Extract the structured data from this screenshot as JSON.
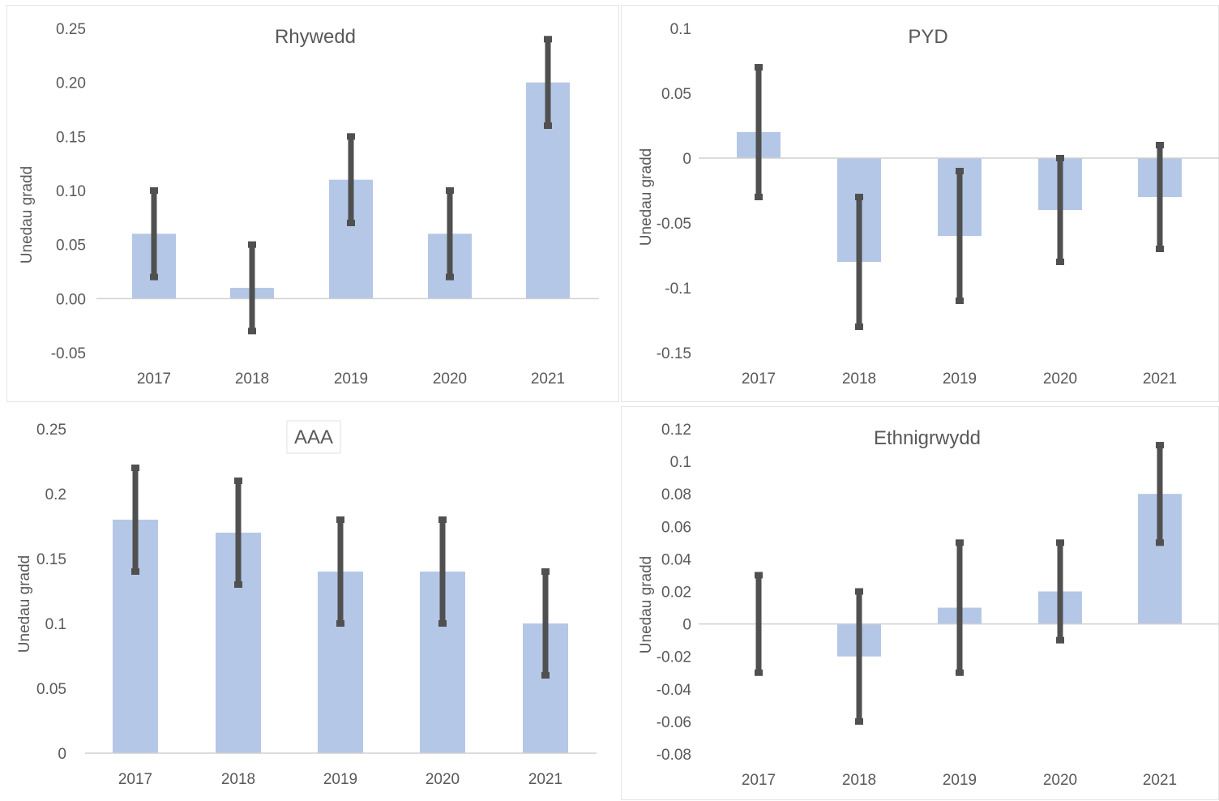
{
  "chart_data": [
    {
      "type": "bar",
      "title": "Rhywedd",
      "ylabel": "Unedau gradd",
      "xlabel": "",
      "categories": [
        "2017",
        "2018",
        "2019",
        "2020",
        "2021"
      ],
      "values": [
        0.06,
        0.01,
        0.11,
        0.06,
        0.2
      ],
      "error_low": [
        0.02,
        -0.03,
        0.07,
        0.02,
        0.16
      ],
      "error_high": [
        0.1,
        0.05,
        0.15,
        0.1,
        0.24
      ],
      "ylim": [
        -0.05,
        0.25
      ],
      "yticks": [
        "0.25",
        "0.20",
        "0.15",
        "0.10",
        "0.05",
        "0.00",
        "-0.05"
      ],
      "ytick_values": [
        0.25,
        0.2,
        0.15,
        0.1,
        0.05,
        0.0,
        -0.05
      ],
      "legend": "none",
      "grid": false
    },
    {
      "type": "bar",
      "title": "PYD",
      "ylabel": "Unedau gradd",
      "xlabel": "",
      "categories": [
        "2017",
        "2018",
        "2019",
        "2020",
        "2021"
      ],
      "values": [
        0.02,
        -0.08,
        -0.06,
        -0.04,
        -0.03
      ],
      "error_low": [
        -0.03,
        -0.13,
        -0.11,
        -0.08,
        -0.07
      ],
      "error_high": [
        0.07,
        -0.03,
        -0.01,
        0.0,
        0.01
      ],
      "ylim": [
        -0.15,
        0.1
      ],
      "yticks": [
        "0.1",
        "0.05",
        "0",
        "-0.05",
        "-0.1",
        "-0.15"
      ],
      "ytick_values": [
        0.1,
        0.05,
        0,
        -0.05,
        -0.1,
        -0.15
      ],
      "legend": "none",
      "grid": false
    },
    {
      "type": "bar",
      "title": "AAA",
      "ylabel": "Unedau gradd",
      "xlabel": "",
      "categories": [
        "2017",
        "2018",
        "2019",
        "2020",
        "2021"
      ],
      "values": [
        0.18,
        0.17,
        0.14,
        0.14,
        0.1
      ],
      "error_low": [
        0.14,
        0.13,
        0.1,
        0.1,
        0.06
      ],
      "error_high": [
        0.22,
        0.21,
        0.18,
        0.18,
        0.14
      ],
      "ylim": [
        0,
        0.25
      ],
      "yticks": [
        "0.25",
        "0.2",
        "0.15",
        "0.1",
        "0.05",
        "0"
      ],
      "ytick_values": [
        0.25,
        0.2,
        0.15,
        0.1,
        0.05,
        0
      ],
      "legend": "none",
      "grid": false
    },
    {
      "type": "bar",
      "title": "Ethnigrwydd",
      "ylabel": "Unedau gradd",
      "xlabel": "",
      "categories": [
        "2017",
        "2018",
        "2019",
        "2020",
        "2021"
      ],
      "values": [
        0.0,
        -0.02,
        0.01,
        0.02,
        0.08
      ],
      "error_low": [
        -0.03,
        -0.06,
        -0.03,
        -0.01,
        0.05
      ],
      "error_high": [
        0.03,
        0.02,
        0.05,
        0.05,
        0.11
      ],
      "ylim": [
        -0.08,
        0.12
      ],
      "yticks": [
        "0.12",
        "0.1",
        "0.08",
        "0.06",
        "0.04",
        "0.02",
        "0",
        "-0.02",
        "-0.04",
        "-0.06",
        "-0.08"
      ],
      "ytick_values": [
        0.12,
        0.1,
        0.08,
        0.06,
        0.04,
        0.02,
        0,
        -0.02,
        -0.04,
        -0.06,
        -0.08
      ],
      "legend": "none",
      "grid": false
    }
  ],
  "colors": {
    "bar": "#b4c7e7",
    "error_bar": "#505050",
    "axis": "#d0d0d0",
    "text": "#595959"
  }
}
